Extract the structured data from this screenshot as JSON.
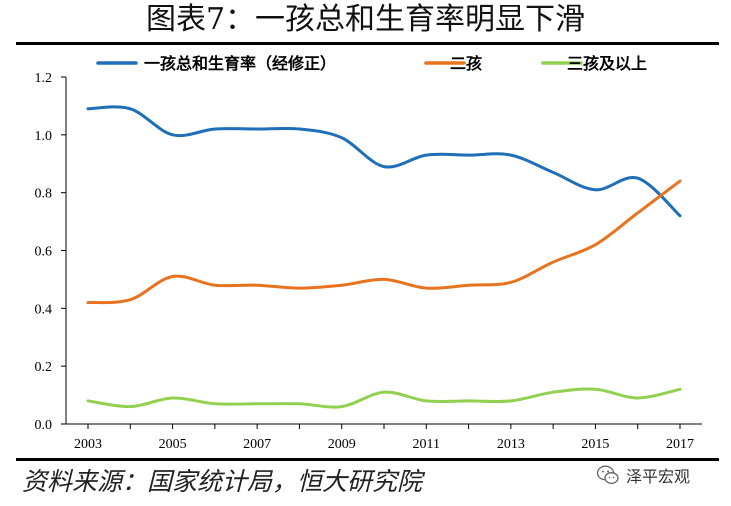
{
  "title": "图表7：一孩总和生育率明显下滑",
  "source": "资料来源：国家统计局，恒大研究院",
  "brand": {
    "name": "泽平宏观",
    "icon": "wechat-icon"
  },
  "colors": {
    "first_child": "#1f6eb8",
    "second_child": "#e8731f",
    "third_plus": "#92d050"
  },
  "chart_data": {
    "type": "line",
    "title": "",
    "xlabel": "",
    "ylabel": "",
    "x": [
      2003,
      2004,
      2005,
      2006,
      2007,
      2008,
      2009,
      2010,
      2011,
      2012,
      2013,
      2014,
      2015,
      2016,
      2017
    ],
    "xticks": [
      "2003",
      "2005",
      "2007",
      "2009",
      "2011",
      "2013",
      "2015",
      "2017"
    ],
    "yticks": [
      "0.0",
      "0.2",
      "0.4",
      "0.6",
      "0.8",
      "1.0",
      "1.2"
    ],
    "ylim": [
      0,
      1.2
    ],
    "series": [
      {
        "name": "一孩总和生育率（经修正）",
        "color": "#1f6eb8",
        "values": [
          1.09,
          1.09,
          1.0,
          1.02,
          1.02,
          1.02,
          0.99,
          0.89,
          0.93,
          0.93,
          0.93,
          0.87,
          0.81,
          0.85,
          0.72
        ]
      },
      {
        "name": "二孩",
        "color": "#e8731f",
        "values": [
          0.42,
          0.43,
          0.51,
          0.48,
          0.48,
          0.47,
          0.48,
          0.5,
          0.47,
          0.48,
          0.49,
          0.56,
          0.62,
          0.73,
          0.84
        ]
      },
      {
        "name": "三孩及以上",
        "color": "#92d050",
        "values": [
          0.08,
          0.06,
          0.09,
          0.07,
          0.07,
          0.07,
          0.06,
          0.11,
          0.08,
          0.08,
          0.08,
          0.11,
          0.12,
          0.09,
          0.12
        ]
      }
    ]
  }
}
